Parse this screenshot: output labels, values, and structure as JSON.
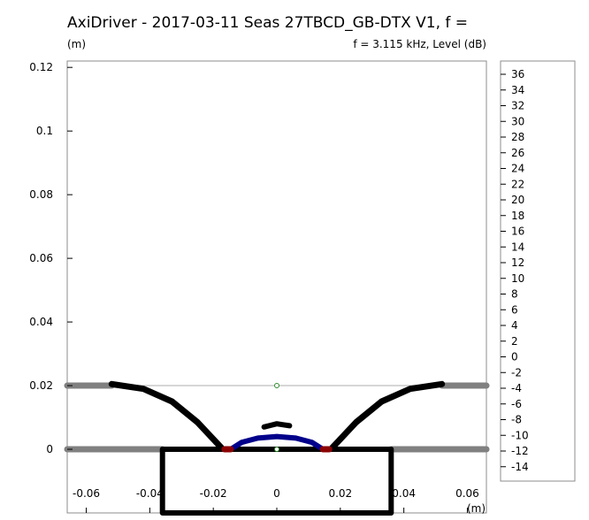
{
  "title": "AxiDriver - 2017-03-11 Seas 27TBCD_GB-DTX V1,   f =",
  "y_unit": "(m)",
  "frequency_label": "f = 3.115 kHz, Level  (dB)",
  "chart_data": {
    "type": "scatter",
    "xlabel": "(m)",
    "ylabel": "(m)",
    "xlim": [
      -0.066,
      0.066
    ],
    "ylim": [
      -0.02,
      0.122
    ],
    "x_ticks": [
      -0.06,
      -0.04,
      -0.02,
      0,
      0.02,
      0.04,
      0.06
    ],
    "x_tick_labels": [
      "-0.06",
      "-0.04",
      "-0.02",
      "0",
      "0.02",
      "0.04",
      "0.06"
    ],
    "y_ticks": [
      0,
      0.02,
      0.04,
      0.06,
      0.08,
      0.1,
      0.12
    ],
    "y_tick_labels": [
      "0",
      "0.02",
      "0.04",
      "0.06",
      "0.08",
      "0.1",
      "0.12"
    ],
    "colorbar": {
      "label": "Level (dB)",
      "ticks": [
        "36",
        "34",
        "32",
        "30",
        "28",
        "26",
        "24",
        "22",
        "20",
        "18",
        "16",
        "14",
        "12",
        "10",
        "8",
        "6",
        "4",
        "2",
        "0",
        "-2",
        "-4",
        "-6",
        "-8",
        "-10",
        "-12",
        "-14"
      ]
    },
    "colors": {
      "boundary": "#000000",
      "baffle": "#808080",
      "reference_line": "#c8c8c8",
      "diaphragm": "#00008b",
      "surround": "#8b0000",
      "marker": "#2e8b2e"
    },
    "baffle_lines": [
      {
        "y": 0.02,
        "x_start": -0.066,
        "x_end": -0.052
      },
      {
        "y": 0.02,
        "x_start": 0.052,
        "x_end": 0.066
      },
      {
        "y": 0,
        "x_start": -0.066,
        "x_end": -0.036
      },
      {
        "y": 0,
        "x_start": 0.036,
        "x_end": 0.066
      }
    ],
    "reference_lines": [
      {
        "y": 0.02,
        "x_start": -0.066,
        "x_end": 0.066
      },
      {
        "y": 0,
        "x_start": -0.066,
        "x_end": 0.066
      }
    ],
    "waveguide_left": [
      [
        -0.052,
        0.0205
      ],
      [
        -0.042,
        0.019
      ],
      [
        -0.033,
        0.015
      ],
      [
        -0.025,
        0.0085
      ],
      [
        -0.0175,
        0.0005
      ]
    ],
    "waveguide_right": [
      [
        0.0175,
        0.0005
      ],
      [
        0.025,
        0.0085
      ],
      [
        0.033,
        0.015
      ],
      [
        0.042,
        0.019
      ],
      [
        0.052,
        0.0205
      ]
    ],
    "enclosure_rect": [
      [
        -0.036,
        0
      ],
      [
        0.036,
        0
      ],
      [
        0.036,
        -0.02
      ],
      [
        -0.036,
        -0.02
      ]
    ],
    "surround_left": [
      [
        -0.0165,
        0
      ],
      [
        -0.0145,
        0
      ]
    ],
    "surround_right": [
      [
        0.0145,
        0
      ],
      [
        0.0165,
        0
      ]
    ],
    "diaphragm": [
      [
        -0.0145,
        0
      ],
      [
        -0.011,
        0.0022
      ],
      [
        -0.006,
        0.0035
      ],
      [
        0,
        0.004
      ],
      [
        0.006,
        0.0035
      ],
      [
        0.011,
        0.0022
      ],
      [
        0.0145,
        0
      ]
    ],
    "phase_plug": [
      [
        -0.004,
        0.007
      ],
      [
        -0.002,
        0.0075
      ],
      [
        0,
        0.008
      ],
      [
        0.002,
        0.0077
      ],
      [
        0.004,
        0.0074
      ]
    ],
    "markers": [
      [
        0,
        0.02
      ],
      [
        0,
        0
      ]
    ]
  }
}
